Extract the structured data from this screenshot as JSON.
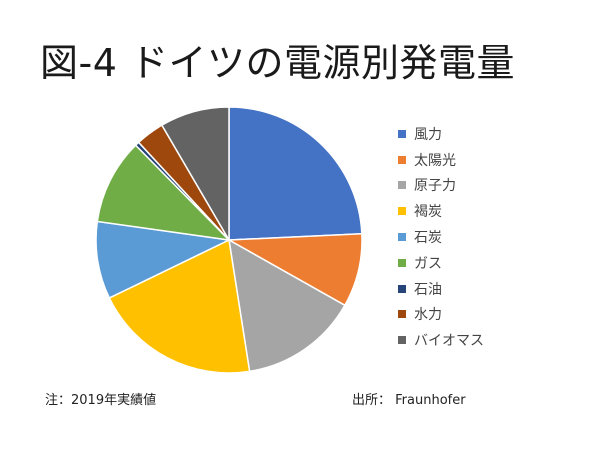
{
  "title": "図-4 ドイツの電源別発電量",
  "note": "注：2019年実績値",
  "source": "出所： Fraunhofer",
  "chart_data": {
    "type": "pie",
    "title": "図-4 ドイツの電源別発電量",
    "legend_position": "right",
    "slices": [
      {
        "label": "風力",
        "value": 24.5,
        "color": "#4472C4"
      },
      {
        "label": "太陽光",
        "value": 9.0,
        "color": "#ED7D31"
      },
      {
        "label": "原子力",
        "value": 14.5,
        "color": "#A5A5A5"
      },
      {
        "label": "褐炭",
        "value": 20.5,
        "color": "#FFC000"
      },
      {
        "label": "石炭",
        "value": 9.5,
        "color": "#5B9BD5"
      },
      {
        "label": "ガス",
        "value": 10.5,
        "color": "#70AD47"
      },
      {
        "label": "石油",
        "value": 0.5,
        "color": "#264478"
      },
      {
        "label": "水力",
        "value": 3.5,
        "color": "#9E480E"
      },
      {
        "label": "バイオマス",
        "value": 8.5,
        "color": "#636363"
      }
    ]
  }
}
